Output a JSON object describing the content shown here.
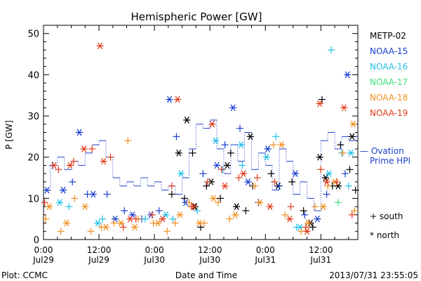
{
  "chart_data": {
    "type": "scatter",
    "title": "Hemispheric Power [GW]",
    "ylabel": "P [GW]",
    "xlabel": "Date and Time",
    "ylim": [
      0,
      52
    ],
    "yticks": [
      0,
      10,
      20,
      30,
      40,
      50
    ],
    "xlim": [
      "2013-07-29T00:00",
      "2013-07-31T20:00"
    ],
    "xticks": [
      {
        "t": "2013-07-29T00:00",
        "time": "0:00",
        "date": "Jul29"
      },
      {
        "t": "2013-07-29T12:00",
        "time": "12:00",
        "date": "Jul29"
      },
      {
        "t": "2013-07-30T00:00",
        "time": "0:00",
        "date": "Jul30"
      },
      {
        "t": "2013-07-30T12:00",
        "time": "12:00",
        "date": "Jul30"
      },
      {
        "t": "2013-07-31T00:00",
        "time": "0:00",
        "date": "Jul31"
      },
      {
        "t": "2013-07-31T12:00",
        "time": "12:00",
        "date": "Jul31"
      }
    ],
    "footer_left": "Plot: CCMC",
    "footer_right": "2013/07/31 23:55:05",
    "grid": false,
    "legend_position": "right",
    "marker_legend": [
      {
        "symbol": "+",
        "label": "south"
      },
      {
        "symbol": "*",
        "label": "north"
      }
    ],
    "ovation": {
      "name": "— Ovation Prime HPI",
      "color": "#1a3fd0",
      "step_x": [
        "2013-07-29T00:00",
        "2013-07-29T01:30",
        "2013-07-29T03:00",
        "2013-07-29T04:30",
        "2013-07-29T06:00",
        "2013-07-29T07:30",
        "2013-07-29T09:00",
        "2013-07-29T10:30",
        "2013-07-29T12:00",
        "2013-07-29T13:30",
        "2013-07-29T15:00",
        "2013-07-29T16:30",
        "2013-07-29T18:00",
        "2013-07-29T19:30",
        "2013-07-29T21:00",
        "2013-07-29T22:30",
        "2013-07-30T00:00",
        "2013-07-30T01:30",
        "2013-07-30T03:00",
        "2013-07-30T04:30",
        "2013-07-30T06:00",
        "2013-07-30T07:30",
        "2013-07-30T09:00",
        "2013-07-30T10:30",
        "2013-07-30T12:00",
        "2013-07-30T13:30",
        "2013-07-30T15:00",
        "2013-07-30T16:30",
        "2013-07-30T18:00",
        "2013-07-30T19:30",
        "2013-07-30T21:00",
        "2013-07-30T22:30",
        "2013-07-31T00:00",
        "2013-07-31T01:30",
        "2013-07-31T03:00",
        "2013-07-31T04:30",
        "2013-07-31T06:00",
        "2013-07-31T07:30",
        "2013-07-31T09:00",
        "2013-07-31T10:30",
        "2013-07-31T12:00",
        "2013-07-31T13:30",
        "2013-07-31T15:00",
        "2013-07-31T16:30",
        "2013-07-31T18:00",
        "2013-07-31T19:30",
        "2013-07-31T20:00"
      ],
      "step_y": [
        12,
        18,
        20,
        17,
        19,
        18,
        21,
        23,
        24,
        20,
        15,
        13,
        14,
        13,
        15,
        13,
        14,
        12,
        13,
        11,
        15,
        22,
        28,
        27,
        29,
        22,
        16,
        23,
        19,
        26,
        17,
        21,
        18,
        12,
        22,
        19,
        11,
        14,
        10,
        7,
        24,
        26,
        22,
        25,
        24,
        25,
        25
      ]
    },
    "series": [
      {
        "name": "METP-02",
        "color": "#000000",
        "south_x": [
          "2013-07-30T03:45",
          "2013-07-30T06:30",
          "2013-07-30T08:15",
          "2013-07-30T10:00",
          "2013-07-30T11:15",
          "2013-07-30T14:15",
          "2013-07-30T16:30",
          "2013-07-30T19:45",
          "2013-07-30T21:15",
          "2013-07-31T01:15",
          "2013-07-31T05:45",
          "2013-07-31T08:15",
          "2013-07-31T10:15",
          "2013-07-31T12:15",
          "2013-07-31T14:30",
          "2013-07-31T16:15",
          "2013-07-31T18:15",
          "2013-07-31T19:30"
        ],
        "south_y": [
          11,
          10,
          21,
          3,
          13,
          10,
          21,
          7,
          13,
          16,
          14,
          7,
          3,
          34,
          13,
          23,
          17,
          12
        ],
        "north_x": [
          "2013-07-30T05:15",
          "2013-07-30T07:00",
          "2013-07-30T08:45",
          "2013-07-30T12:15",
          "2013-07-30T15:45",
          "2013-07-30T17:45",
          "2013-07-30T20:45",
          "2013-07-31T02:45",
          "2013-07-31T09:45",
          "2013-07-31T11:45",
          "2013-07-31T13:00",
          "2013-07-31T15:45",
          "2013-07-31T18:45"
        ],
        "north_y": [
          21,
          29,
          8,
          14,
          18,
          8,
          25,
          13,
          4,
          20,
          15,
          13,
          25
        ]
      },
      {
        "name": "NOAA-15",
        "color": "#1a3fd0",
        "south_x": [
          "2013-07-29T02:00",
          "2013-07-29T06:15",
          "2013-07-29T09:30",
          "2013-07-29T13:45",
          "2013-07-29T17:30",
          "2013-07-29T21:15",
          "2013-07-30T01:00",
          "2013-07-30T04:45",
          "2013-07-30T10:30",
          "2013-07-30T15:15",
          "2013-07-30T18:30",
          "2013-07-30T22:30",
          "2013-07-31T03:00",
          "2013-07-31T08:30",
          "2013-07-31T13:15",
          "2013-07-31T17:15"
        ],
        "south_y": [
          18,
          14,
          11,
          11,
          7,
          5,
          7,
          25,
          16,
          23,
          27,
          9,
          13,
          6,
          11,
          16
        ],
        "north_x": [
          "2013-07-29T00:45",
          "2013-07-29T04:15",
          "2013-07-29T07:45",
          "2013-07-29T10:45",
          "2013-07-29T15:30",
          "2013-07-29T19:15",
          "2013-07-29T23:15",
          "2013-07-30T03:15",
          "2013-07-30T06:45",
          "2013-07-30T13:30",
          "2013-07-30T17:00",
          "2013-07-30T20:15",
          "2013-07-31T00:30",
          "2013-07-31T06:30",
          "2013-07-31T11:15",
          "2013-07-31T17:45"
        ],
        "north_y": [
          12,
          12,
          26,
          11,
          5,
          6,
          6,
          34,
          9,
          18,
          32,
          14,
          22,
          16,
          5,
          40
        ]
      },
      {
        "name": "NOAA-16",
        "color": "#1fbfe6",
        "south_x": [
          "2013-07-29T05:30",
          "2013-07-29T12:45",
          "2013-07-29T22:00",
          "2013-07-30T04:00",
          "2013-07-30T09:15",
          "2013-07-30T14:45",
          "2013-07-30T19:00",
          "2013-07-31T02:15",
          "2013-07-31T06:45",
          "2013-07-31T14:15",
          "2013-07-31T16:30",
          "2013-07-31T18:00"
        ],
        "south_y": [
          8,
          5,
          5,
          5,
          7,
          17,
          18,
          25,
          3,
          46,
          21,
          13
        ],
        "north_x": [
          "2013-07-29T03:30",
          "2013-07-29T11:45",
          "2013-07-30T02:30",
          "2013-07-30T05:45",
          "2013-07-30T13:15",
          "2013-07-30T18:45",
          "2013-07-31T00:15",
          "2013-07-31T07:30",
          "2013-07-31T13:45",
          "2013-07-31T18:30"
        ],
        "north_y": [
          9,
          4,
          6,
          16,
          24,
          23,
          20,
          3,
          16,
          21
        ]
      },
      {
        "name": "NOAA-17",
        "color": "#3fe07a",
        "south_x": [
          "2013-07-31T15:45"
        ],
        "south_y": [
          9
        ],
        "north_x": [],
        "north_y": []
      },
      {
        "name": "NOAA-18",
        "color": "#f0901e",
        "south_x": [
          "2013-07-29T00:30",
          "2013-07-29T03:45",
          "2013-07-29T06:45",
          "2013-07-29T10:15",
          "2013-07-29T12:30",
          "2013-07-29T15:15",
          "2013-07-29T18:15",
          "2013-07-29T20:30",
          "2013-07-29T23:45",
          "2013-07-30T02:45",
          "2013-07-30T04:30",
          "2013-07-30T07:30",
          "2013-07-30T10:45",
          "2013-07-30T13:45",
          "2013-07-30T16:15",
          "2013-07-30T21:45",
          "2013-07-31T01:45",
          "2013-07-31T04:15",
          "2013-07-31T07:45",
          "2013-07-31T10:45",
          "2013-07-31T13:30",
          "2013-07-31T16:45",
          "2013-07-31T19:15"
        ],
        "south_y": [
          5,
          2,
          10,
          2,
          3,
          4,
          24,
          5,
          4,
          2,
          4,
          9,
          4,
          9,
          5,
          13,
          23,
          6,
          2,
          8,
          13,
          21,
          7
        ],
        "north_x": [
          "2013-07-29T01:15",
          "2013-07-29T05:00",
          "2013-07-29T09:00",
          "2013-07-29T13:30",
          "2013-07-29T16:45",
          "2013-07-29T19:45",
          "2013-07-30T00:45",
          "2013-07-30T05:30",
          "2013-07-30T09:45",
          "2013-07-30T12:45",
          "2013-07-30T17:30",
          "2013-07-30T22:45",
          "2013-07-31T03:30",
          "2013-07-31T09:15",
          "2013-07-31T12:30",
          "2013-07-31T15:00",
          "2013-07-31T19:00"
        ],
        "north_y": [
          8,
          4,
          8,
          3,
          4,
          3,
          4,
          6,
          4,
          10,
          6,
          9,
          23,
          4,
          8,
          14,
          28
        ]
      },
      {
        "name": "NOAA-19",
        "color": "#e03a1a",
        "south_x": [
          "2013-07-29T00:15",
          "2013-07-29T03:15",
          "2013-07-29T06:30",
          "2013-07-29T10:30",
          "2013-07-29T14:30",
          "2013-07-29T17:15",
          "2013-07-29T20:00",
          "2013-07-29T23:30",
          "2013-07-30T03:45",
          "2013-07-30T08:00",
          "2013-07-30T11:30",
          "2013-07-30T14:30",
          "2013-07-30T18:15",
          "2013-07-30T22:15",
          "2013-07-31T02:00",
          "2013-07-31T05:30",
          "2013-07-31T08:45",
          "2013-07-31T12:00",
          "2013-07-31T15:30",
          "2013-07-31T18:45"
        ],
        "south_y": [
          9,
          17,
          19,
          22,
          20,
          3,
          5,
          6,
          13,
          8,
          14,
          17,
          15,
          15,
          14,
          8,
          3,
          17,
          14,
          6
        ],
        "north_x": [
          "2013-07-29T02:15",
          "2013-07-29T05:45",
          "2013-07-29T08:45",
          "2013-07-29T12:15",
          "2013-07-29T13:00",
          "2013-07-29T18:45",
          "2013-07-30T01:45",
          "2013-07-30T05:00",
          "2013-07-30T08:30",
          "2013-07-30T12:30",
          "2013-07-30T15:15",
          "2013-07-30T19:15",
          "2013-07-31T01:00",
          "2013-07-31T05:15",
          "2013-07-31T09:00",
          "2013-07-31T11:45",
          "2013-07-31T13:15",
          "2013-07-31T17:00"
        ],
        "north_y": [
          18,
          18,
          22,
          47,
          19,
          5,
          5,
          34,
          8,
          28,
          13,
          16,
          8,
          5,
          2,
          33,
          14,
          32
        ]
      }
    ]
  }
}
